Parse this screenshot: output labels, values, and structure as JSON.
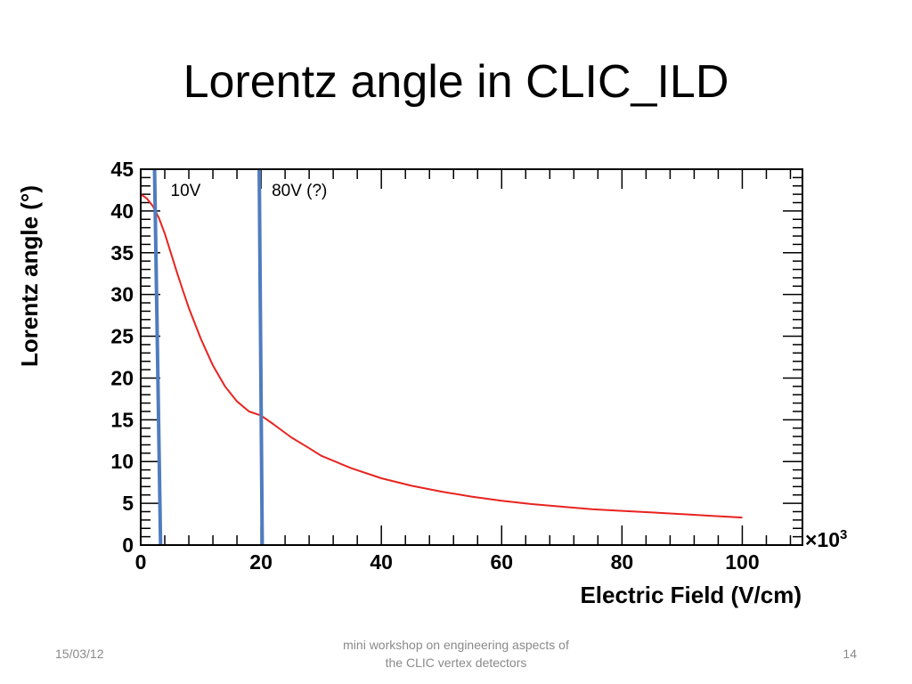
{
  "slide": {
    "title": "Lorentz angle in CLIC_ILD",
    "footer_date": "15/03/12",
    "footer_center_line1": "mini workshop on engineering aspects of",
    "footer_center_line2": "the CLIC vertex detectors",
    "page_number": "14"
  },
  "chart_data": {
    "type": "line",
    "title": "",
    "xlabel": "Electric Field (V/cm)",
    "ylabel": "Lorentz angle (°)",
    "x_multiplier_label": "×10",
    "x_multiplier_exponent": "3",
    "xlim": [
      0,
      110
    ],
    "ylim": [
      0,
      45
    ],
    "x_ticks": [
      0,
      20,
      40,
      60,
      80,
      100
    ],
    "y_ticks": [
      0,
      5,
      10,
      15,
      20,
      25,
      30,
      35,
      40,
      45
    ],
    "series": [
      {
        "color": "#e8231f",
        "x": [
          0,
          1,
          2,
          3,
          4,
          5,
          6,
          7,
          8,
          10,
          12,
          14,
          16,
          18,
          20,
          22,
          25,
          28,
          30,
          35,
          40,
          45,
          50,
          55,
          60,
          65,
          70,
          75,
          80,
          85,
          90,
          95,
          100
        ],
        "y": [
          42,
          41.5,
          40.6,
          39.2,
          37.3,
          35,
          32.7,
          30.5,
          28.4,
          24.7,
          21.5,
          19,
          17.2,
          16,
          15.5,
          14.5,
          12.9,
          11.6,
          10.7,
          9.2,
          8,
          7.1,
          6.4,
          5.8,
          5.3,
          4.9,
          4.6,
          4.3,
          4.1,
          3.9,
          3.7,
          3.5,
          3.3
        ]
      }
    ],
    "vertical_lines": [
      {
        "label": "10V",
        "color": "#4f7cc0",
        "x_top": 2.3,
        "x_bottom": 3.3
      },
      {
        "label": "80V (?)",
        "color": "#4f7cc0",
        "x_top": 19.7,
        "x_bottom": 20.2
      }
    ],
    "grid": false,
    "legend": "none"
  }
}
